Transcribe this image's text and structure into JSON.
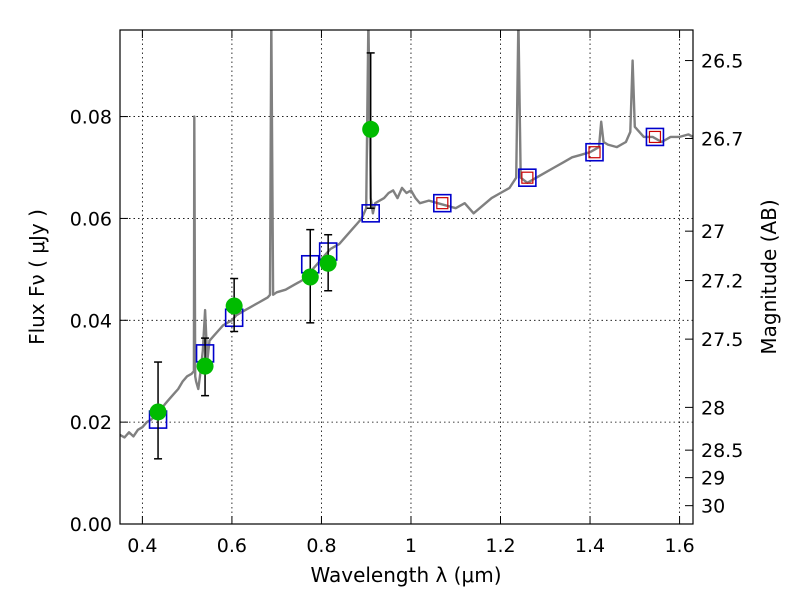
{
  "chart_data": {
    "type": "scatter",
    "title": "",
    "xlabel": "Wavelength  λ (μm)",
    "ylabel": "Flux  Fν  ( μJy )",
    "y2label": "Magnitude (AB)",
    "xlim": [
      0.35,
      1.63
    ],
    "ylim": [
      0.0,
      0.097
    ],
    "grid": true,
    "x_ticks": [
      {
        "value": 0.4,
        "label": "0.4"
      },
      {
        "value": 0.6,
        "label": "0.6"
      },
      {
        "value": 0.8,
        "label": "0.8"
      },
      {
        "value": 1.0,
        "label": "1"
      },
      {
        "value": 1.2,
        "label": "1.2"
      },
      {
        "value": 1.4,
        "label": "1.4"
      },
      {
        "value": 1.6,
        "label": "1.6"
      }
    ],
    "y_ticks": [
      {
        "value": 0.0,
        "label": "0.00"
      },
      {
        "value": 0.02,
        "label": "0.02"
      },
      {
        "value": 0.04,
        "label": "0.04"
      },
      {
        "value": 0.06,
        "label": "0.06"
      },
      {
        "value": 0.08,
        "label": "0.08"
      }
    ],
    "y2_ticks": [
      {
        "label": "26.5",
        "flux": 0.091
      },
      {
        "label": "26.7",
        "flux": 0.0757
      },
      {
        "label": "27",
        "flux": 0.0575
      },
      {
        "label": "27.2",
        "flux": 0.0478
      },
      {
        "label": "27.5",
        "flux": 0.0363
      },
      {
        "label": "28",
        "flux": 0.0229
      },
      {
        "label": "28.5",
        "flux": 0.0145
      },
      {
        "label": "29",
        "flux": 0.0091
      },
      {
        "label": "30",
        "flux": 0.0036
      }
    ],
    "colors": {
      "template": "#808080",
      "observed": "#00bb00",
      "model_box": "#0000cc",
      "model_box_inner": "#cc0000",
      "errorbar": "#000000"
    },
    "series": [
      {
        "kind": "template_spectrum",
        "points": [
          [
            0.35,
            0.0175
          ],
          [
            0.36,
            0.017
          ],
          [
            0.37,
            0.018
          ],
          [
            0.38,
            0.0172
          ],
          [
            0.39,
            0.0185
          ],
          [
            0.4,
            0.019
          ],
          [
            0.41,
            0.02
          ],
          [
            0.42,
            0.0205
          ],
          [
            0.43,
            0.0215
          ],
          [
            0.44,
            0.0222
          ],
          [
            0.45,
            0.0235
          ],
          [
            0.46,
            0.0245
          ],
          [
            0.47,
            0.0255
          ],
          [
            0.48,
            0.0265
          ],
          [
            0.49,
            0.028
          ],
          [
            0.5,
            0.029
          ],
          [
            0.51,
            0.0295
          ],
          [
            0.515,
            0.03
          ],
          [
            0.516,
            0.08
          ],
          [
            0.518,
            0.029
          ],
          [
            0.52,
            0.028
          ],
          [
            0.525,
            0.0265
          ],
          [
            0.53,
            0.03
          ],
          [
            0.535,
            0.034
          ],
          [
            0.54,
            0.042
          ],
          [
            0.545,
            0.032
          ],
          [
            0.55,
            0.036
          ],
          [
            0.56,
            0.037
          ],
          [
            0.57,
            0.038
          ],
          [
            0.58,
            0.039
          ],
          [
            0.59,
            0.0395
          ],
          [
            0.6,
            0.04
          ],
          [
            0.61,
            0.041
          ],
          [
            0.62,
            0.0415
          ],
          [
            0.63,
            0.042
          ],
          [
            0.64,
            0.0425
          ],
          [
            0.65,
            0.043
          ],
          [
            0.66,
            0.0435
          ],
          [
            0.67,
            0.044
          ],
          [
            0.68,
            0.0445
          ],
          [
            0.685,
            0.045
          ],
          [
            0.688,
            0.099
          ],
          [
            0.692,
            0.045
          ],
          [
            0.7,
            0.0455
          ],
          [
            0.72,
            0.046
          ],
          [
            0.74,
            0.047
          ],
          [
            0.75,
            0.0475
          ],
          [
            0.76,
            0.048
          ],
          [
            0.77,
            0.049
          ],
          [
            0.78,
            0.05
          ],
          [
            0.79,
            0.051
          ],
          [
            0.8,
            0.052
          ],
          [
            0.81,
            0.053
          ],
          [
            0.82,
            0.054
          ],
          [
            0.83,
            0.0545
          ],
          [
            0.84,
            0.055
          ],
          [
            0.85,
            0.056
          ],
          [
            0.86,
            0.057
          ],
          [
            0.87,
            0.058
          ],
          [
            0.88,
            0.059
          ],
          [
            0.89,
            0.06
          ],
          [
            0.895,
            0.061
          ],
          [
            0.9,
            0.062
          ],
          [
            0.905,
            0.099
          ],
          [
            0.91,
            0.064
          ],
          [
            0.915,
            0.061
          ],
          [
            0.92,
            0.063
          ],
          [
            0.94,
            0.064
          ],
          [
            0.95,
            0.065
          ],
          [
            0.96,
            0.0655
          ],
          [
            0.97,
            0.064
          ],
          [
            0.98,
            0.066
          ],
          [
            0.99,
            0.065
          ],
          [
            1.0,
            0.0655
          ],
          [
            1.01,
            0.064
          ],
          [
            1.02,
            0.063
          ],
          [
            1.04,
            0.0635
          ],
          [
            1.06,
            0.063
          ],
          [
            1.08,
            0.0625
          ],
          [
            1.1,
            0.062
          ],
          [
            1.12,
            0.063
          ],
          [
            1.14,
            0.061
          ],
          [
            1.16,
            0.0625
          ],
          [
            1.18,
            0.064
          ],
          [
            1.2,
            0.065
          ],
          [
            1.22,
            0.066
          ],
          [
            1.235,
            0.068
          ],
          [
            1.24,
            0.099
          ],
          [
            1.245,
            0.068
          ],
          [
            1.26,
            0.067
          ],
          [
            1.28,
            0.068
          ],
          [
            1.3,
            0.069
          ],
          [
            1.32,
            0.07
          ],
          [
            1.34,
            0.071
          ],
          [
            1.36,
            0.072
          ],
          [
            1.38,
            0.0725
          ],
          [
            1.4,
            0.073
          ],
          [
            1.42,
            0.074
          ],
          [
            1.425,
            0.079
          ],
          [
            1.43,
            0.075
          ],
          [
            1.44,
            0.0745
          ],
          [
            1.46,
            0.074
          ],
          [
            1.48,
            0.075
          ],
          [
            1.49,
            0.077
          ],
          [
            1.495,
            0.091
          ],
          [
            1.5,
            0.078
          ],
          [
            1.52,
            0.076
          ],
          [
            1.54,
            0.076
          ],
          [
            1.56,
            0.075
          ],
          [
            1.58,
            0.076
          ],
          [
            1.6,
            0.076
          ],
          [
            1.62,
            0.0765
          ],
          [
            1.63,
            0.076
          ]
        ]
      },
      {
        "kind": "model_photometry",
        "points": [
          {
            "x": 0.435,
            "y": 0.0205
          },
          {
            "x": 0.54,
            "y": 0.0335
          },
          {
            "x": 0.605,
            "y": 0.0405
          },
          {
            "x": 0.775,
            "y": 0.051
          },
          {
            "x": 0.815,
            "y": 0.0535
          },
          {
            "x": 0.91,
            "y": 0.061
          },
          {
            "x": 1.07,
            "y": 0.063,
            "inner": true
          },
          {
            "x": 1.26,
            "y": 0.068,
            "inner": true
          },
          {
            "x": 1.41,
            "y": 0.073,
            "inner": true
          },
          {
            "x": 1.545,
            "y": 0.076,
            "inner": true
          }
        ]
      },
      {
        "kind": "observed_photometry",
        "points": [
          {
            "x": 0.435,
            "y": 0.022,
            "lo": 0.0128,
            "hi": 0.0318
          },
          {
            "x": 0.54,
            "y": 0.031,
            "lo": 0.0252,
            "hi": 0.0365
          },
          {
            "x": 0.605,
            "y": 0.0428,
            "lo": 0.0378,
            "hi": 0.0482
          },
          {
            "x": 0.775,
            "y": 0.0485,
            "lo": 0.0395,
            "hi": 0.0578
          },
          {
            "x": 0.815,
            "y": 0.0512,
            "lo": 0.0458,
            "hi": 0.0568
          },
          {
            "x": 0.91,
            "y": 0.0775,
            "lo": 0.062,
            "hi": 0.0925
          }
        ]
      }
    ]
  }
}
